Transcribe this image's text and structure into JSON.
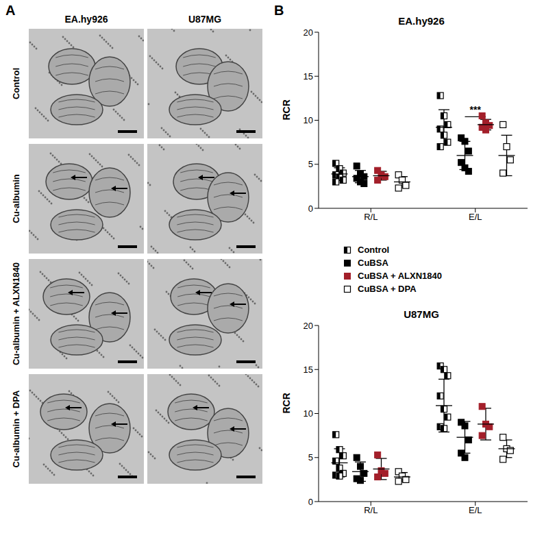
{
  "figure": {
    "panel_a": {
      "label": "A",
      "columns": [
        "EA.hy926",
        "U87MG"
      ],
      "rows": [
        "Control",
        "Cu-albumin",
        "Cu-albumin + ALXN1840",
        "Cu-albumin + DPA"
      ]
    },
    "panel_b": {
      "label": "B"
    }
  },
  "chart_data": [
    {
      "type": "scatter",
      "title": "EA.hy926",
      "categories": [
        "R/L",
        "E/L"
      ],
      "y_label": "RCR",
      "ylim": [
        0,
        20
      ],
      "yticks": [
        0,
        5,
        10,
        15,
        20
      ],
      "series": [
        {
          "name": "Control",
          "color": "#000000",
          "marker": "half_square",
          "values": [
            [
              5.1,
              4.5,
              4.0,
              3.8,
              3.5,
              3.2,
              3.0
            ],
            [
              12.8,
              10.5,
              9.5,
              9.0,
              8.3,
              7.5,
              7.0
            ]
          ],
          "mean": [
            3.9,
            9.2
          ],
          "sd": [
            0.7,
            2.0
          ]
        },
        {
          "name": "CuBSA",
          "color": "#000000",
          "marker": "square",
          "values": [
            [
              4.8,
              3.9,
              3.6,
              3.4,
              3.0,
              2.8
            ],
            [
              8.0,
              7.6,
              6.5,
              5.2,
              4.6,
              4.2
            ]
          ],
          "mean": [
            3.6,
            6.0
          ],
          "sd": [
            0.7,
            1.6
          ]
        },
        {
          "name": "CuBSA + ALXN1840",
          "color": "#a31f2a",
          "marker": "square",
          "values": [
            [
              4.3,
              3.8,
              3.6,
              3.2
            ],
            [
              10.5,
              9.7,
              9.4,
              9.2,
              8.9
            ]
          ],
          "mean": [
            3.7,
            9.5
          ],
          "sd": [
            0.5,
            0.6
          ]
        },
        {
          "name": "CuBSA + DPA",
          "color": "#000000",
          "marker": "open_square",
          "values": [
            [
              3.8,
              3.2,
              2.6,
              2.3
            ],
            [
              9.5,
              7.0,
              5.5,
              4.0
            ]
          ],
          "mean": [
            3.0,
            6.0
          ],
          "sd": [
            0.6,
            2.3
          ]
        }
      ],
      "annotations": [
        {
          "text": "***",
          "category": "E/L",
          "between": [
            "CuBSA",
            "CuBSA + ALXN1840"
          ],
          "y": 10.4
        }
      ]
    },
    {
      "type": "scatter",
      "title": "U87MG",
      "categories": [
        "R/L",
        "E/L"
      ],
      "y_label": "RCR",
      "ylim": [
        0,
        20
      ],
      "yticks": [
        0,
        5,
        10,
        15,
        20
      ],
      "series": [
        {
          "name": "Control",
          "color": "#000000",
          "marker": "half_square",
          "values": [
            [
              7.6,
              5.9,
              5.2,
              4.6,
              3.8,
              3.2,
              3.0,
              2.9
            ],
            [
              15.4,
              15.0,
              14.3,
              12.0,
              10.5,
              9.6,
              8.5,
              8.3
            ]
          ],
          "mean": [
            4.4,
            10.9
          ],
          "sd": [
            1.6,
            3.0
          ]
        },
        {
          "name": "CuBSA",
          "color": "#000000",
          "marker": "square",
          "values": [
            [
              5.0,
              4.0,
              3.2,
              2.6,
              2.4
            ],
            [
              9.0,
              8.6,
              7.0,
              5.5,
              5.0
            ]
          ],
          "mean": [
            3.4,
            7.3
          ],
          "sd": [
            1.1,
            1.8
          ]
        },
        {
          "name": "CuBSA + ALXN1840",
          "color": "#a31f2a",
          "marker": "square",
          "values": [
            [
              5.3,
              3.5,
              3.2,
              2.8
            ],
            [
              10.8,
              8.8,
              8.5,
              7.5
            ]
          ],
          "mean": [
            3.7,
            8.8
          ],
          "sd": [
            1.2,
            1.8
          ]
        },
        {
          "name": "CuBSA + DPA",
          "color": "#000000",
          "marker": "open_square",
          "values": [
            [
              3.4,
              2.9,
              2.5,
              2.3
            ],
            [
              7.3,
              6.0,
              5.8,
              4.8
            ]
          ],
          "mean": [
            2.8,
            6.0
          ],
          "sd": [
            0.5,
            1.0
          ]
        }
      ],
      "annotations": []
    }
  ]
}
